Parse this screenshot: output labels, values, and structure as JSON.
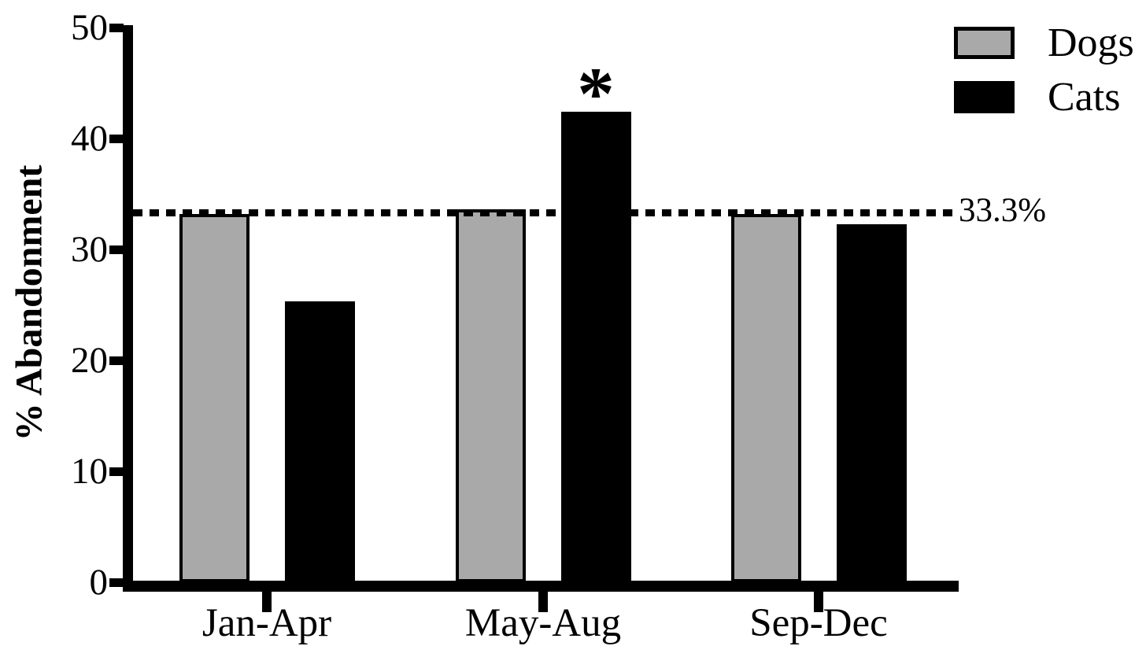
{
  "figure": {
    "background_color": "#ffffff",
    "axis_color": "#000000"
  },
  "chart_data": {
    "type": "bar",
    "title": "",
    "xlabel": "",
    "ylabel": "% Abandonment",
    "categories": [
      "Jan-Apr",
      "May-Aug",
      "Sep-Dec"
    ],
    "series": [
      {
        "name": "Dogs",
        "color": "#a9a9a9",
        "values": [
          33.2,
          33.6,
          33.2
        ]
      },
      {
        "name": "Cats",
        "color": "#000000",
        "values": [
          25.3,
          42.4,
          32.3
        ]
      }
    ],
    "ylim": [
      0,
      50
    ],
    "yticks": [
      0,
      10,
      20,
      30,
      40,
      50
    ],
    "grid": false,
    "legend_position": "top-right",
    "reference_line": {
      "value": 33.3,
      "label": "33.3%",
      "style": "dashed"
    },
    "annotations": [
      {
        "text": "*",
        "series": "Cats",
        "category": "May-Aug",
        "meaning": "significance-marker"
      }
    ]
  }
}
